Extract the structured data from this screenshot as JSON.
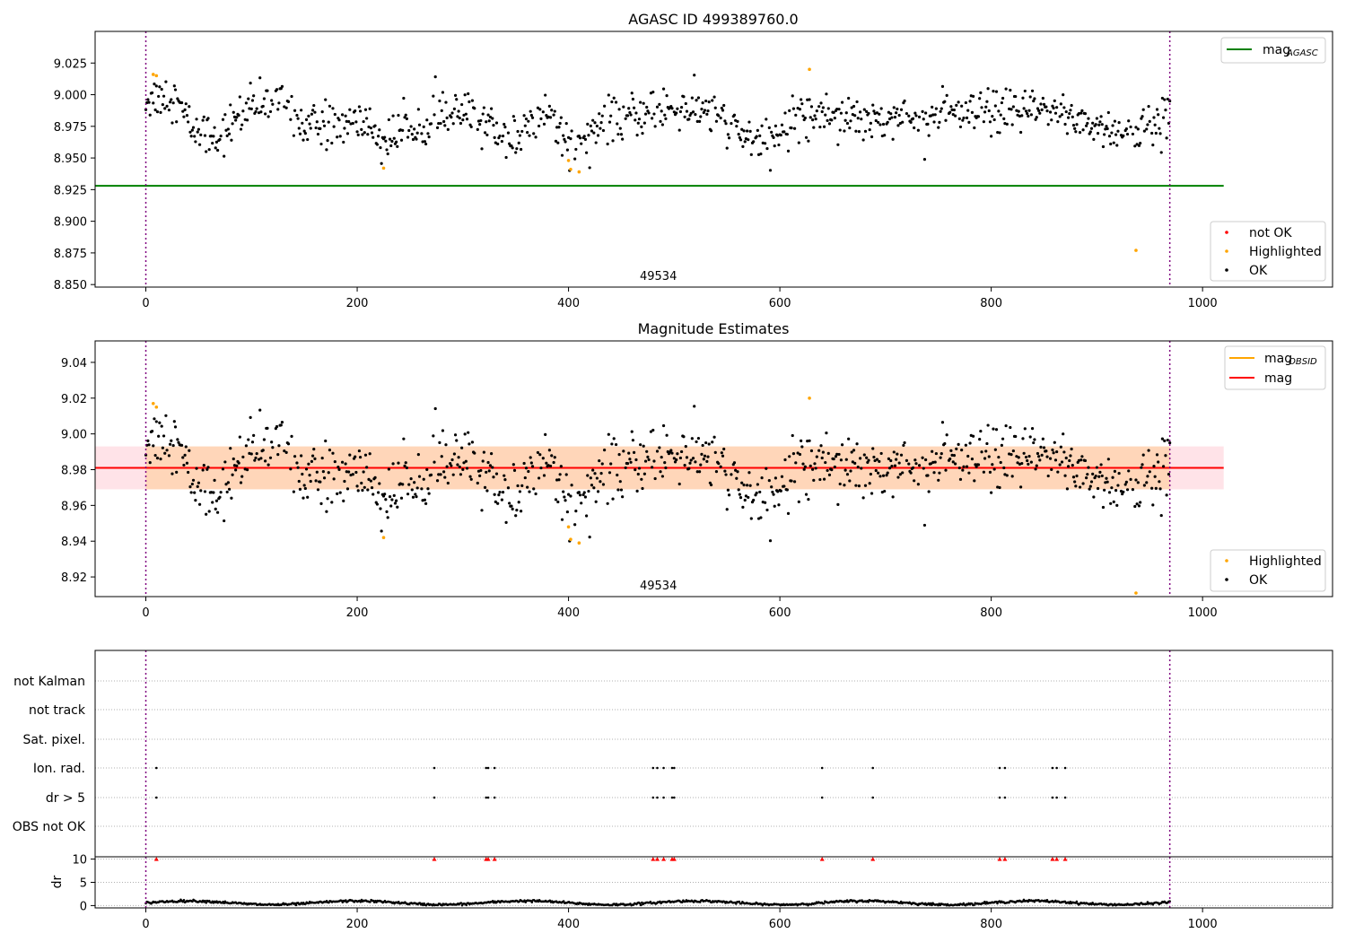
{
  "figure": {
    "background": "#ffffff"
  },
  "chart_data": [
    {
      "type": "scatter",
      "title": "AGASC ID 499389760.0",
      "xlabel": "",
      "ylabel": "",
      "xlim": [
        -48,
        1123
      ],
      "ylim": [
        8.848,
        9.05
      ],
      "xticks": [
        0,
        200,
        400,
        600,
        800,
        1000
      ],
      "yticks": [
        8.85,
        8.875,
        8.9,
        8.925,
        8.95,
        8.975,
        9.0,
        9.025
      ],
      "ytick_labels": [
        "8.850",
        "8.875",
        "8.900",
        "8.925",
        "8.950",
        "8.975",
        "9.000",
        "9.025"
      ],
      "obsid_label": "49534",
      "obsid_label_x": 485,
      "obs_boundaries": [
        0,
        969
      ],
      "reference_lines": [
        {
          "name": "mag_AGASC",
          "y": 8.928,
          "x": [
            0,
            1020
          ],
          "color": "#008000"
        }
      ],
      "highlighted_points": [
        {
          "x": 7,
          "y": 9.016
        },
        {
          "x": 10,
          "y": 9.015
        },
        {
          "x": 225,
          "y": 8.942
        },
        {
          "x": 400,
          "y": 8.948
        },
        {
          "x": 402,
          "y": 8.941
        },
        {
          "x": 410,
          "y": 8.939
        },
        {
          "x": 628,
          "y": 9.02
        },
        {
          "x": 937,
          "y": 8.877
        }
      ],
      "legends": [
        {
          "position": "top-right",
          "entries": [
            {
              "label": "mag",
              "sub": "AGASC",
              "marker": "line",
              "color": "#008000"
            }
          ]
        },
        {
          "position": "bottom-right",
          "entries": [
            {
              "label": "not OK",
              "marker": "dot",
              "color": "#ff0000"
            },
            {
              "label": "Highlighted",
              "marker": "dot",
              "color": "#ffa500"
            },
            {
              "label": "OK",
              "marker": "dot",
              "color": "#000000"
            }
          ]
        }
      ]
    },
    {
      "type": "scatter",
      "title": "Magnitude Estimates",
      "xlabel": "",
      "ylabel": "",
      "xlim": [
        -48,
        1123
      ],
      "ylim": [
        8.909,
        9.052
      ],
      "xticks": [
        0,
        200,
        400,
        600,
        800,
        1000
      ],
      "yticks": [
        8.92,
        8.94,
        8.96,
        8.98,
        9.0,
        9.02,
        9.04
      ],
      "ytick_labels": [
        "8.92",
        "8.94",
        "8.96",
        "8.98",
        "9.00",
        "9.02",
        "9.04"
      ],
      "obsid_label": "49534",
      "obsid_label_x": 485,
      "obs_boundaries": [
        0,
        969
      ],
      "mag_line": {
        "name": "mag",
        "y": 8.981,
        "x": [
          -48,
          1020
        ],
        "color": "#ff0000"
      },
      "mag_band": {
        "y": [
          8.969,
          8.993
        ],
        "x": [
          -48,
          1020
        ],
        "color": "#ffc0cb"
      },
      "mag_obsid_band": {
        "y": [
          8.969,
          8.993
        ],
        "x": [
          0,
          969
        ],
        "color": "#ffa500"
      },
      "highlighted_points": [
        {
          "x": 7,
          "y": 9.017
        },
        {
          "x": 10,
          "y": 9.015
        },
        {
          "x": 225,
          "y": 8.942
        },
        {
          "x": 400,
          "y": 8.948
        },
        {
          "x": 402,
          "y": 8.941
        },
        {
          "x": 410,
          "y": 8.939
        },
        {
          "x": 628,
          "y": 9.02
        },
        {
          "x": 937,
          "y": 8.911
        }
      ],
      "legends": [
        {
          "position": "top-right",
          "entries": [
            {
              "label": "mag",
              "sub": "OBSID",
              "marker": "line",
              "color": "#ffa500"
            },
            {
              "label": "mag",
              "marker": "line",
              "color": "#ff0000"
            }
          ]
        },
        {
          "position": "bottom-right",
          "entries": [
            {
              "label": "Highlighted",
              "marker": "dot",
              "color": "#ffa500"
            },
            {
              "label": "OK",
              "marker": "dot",
              "color": "#000000"
            }
          ]
        }
      ]
    },
    {
      "type": "scatter",
      "title": "",
      "xlabel": "",
      "ylabel": "",
      "xlim": [
        -48,
        1123
      ],
      "categories": [
        "not Kalman",
        "not track",
        "Sat. pixel.",
        "Ion. rad.",
        "dr > 5",
        "OBS not OK"
      ],
      "obs_boundaries": [
        0,
        969
      ],
      "flags": {
        "Ion. rad.": [
          10,
          273,
          322,
          324,
          330,
          480,
          484,
          490,
          498,
          500,
          640,
          688,
          808,
          813,
          858,
          862,
          870
        ],
        "dr > 5": [
          10,
          273,
          322,
          324,
          330,
          480,
          484,
          490,
          498,
          500,
          640,
          688,
          808,
          813,
          858,
          862,
          870
        ]
      }
    },
    {
      "type": "scatter",
      "title": "",
      "xlabel": "",
      "ylabel": "dr",
      "xlim": [
        -48,
        1123
      ],
      "ylim": [
        -0.5,
        10.5
      ],
      "xticks": [
        0,
        200,
        400,
        600,
        800,
        1000
      ],
      "yticks": [
        0,
        5,
        10
      ],
      "ytick_labels": [
        "0",
        "5",
        "10"
      ],
      "obs_boundaries": [
        0,
        969
      ],
      "clipped_marker_x": [
        10,
        273,
        322,
        324,
        330,
        480,
        484,
        490,
        498,
        500,
        640,
        688,
        808,
        813,
        858,
        862,
        870
      ],
      "clipped_value": 10,
      "dr_series": {
        "x_range": [
          0,
          969
        ],
        "n_points": 969,
        "baseline": 0.6,
        "wave_amplitude": 0.4,
        "wave_period": 160,
        "notes_on_range": "dr varies roughly between 0.1 and 1.3"
      }
    }
  ]
}
